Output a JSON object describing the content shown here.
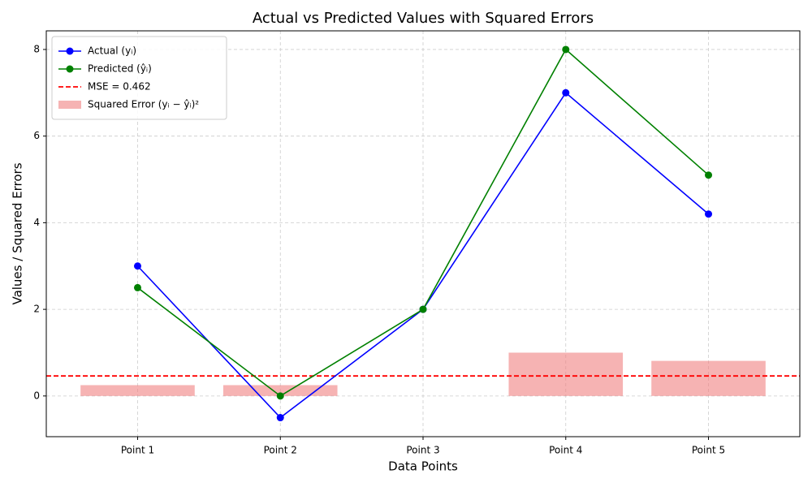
{
  "chart_data": {
    "type": "line",
    "title": "Actual vs Predicted Values with Squared Errors",
    "x_label": "Data Points",
    "y_label": "Values / Squared Errors",
    "categories": [
      "Point 1",
      "Point 2",
      "Point 3",
      "Point 4",
      "Point 5"
    ],
    "series": [
      {
        "name": "Actual (yᵢ)",
        "type": "line",
        "color": "#0000ff",
        "values": [
          3,
          -0.5,
          2,
          7,
          4.2
        ]
      },
      {
        "name": "Predicted (ŷᵢ)",
        "type": "line",
        "color": "#008000",
        "values": [
          2.5,
          0,
          2,
          8,
          5.1
        ]
      },
      {
        "name": "Squared Error (yᵢ − ŷᵢ)²",
        "type": "bar",
        "color": "#f08080",
        "values": [
          0.25,
          0.25,
          0,
          1,
          0.81
        ]
      }
    ],
    "reference_lines": [
      {
        "name": "MSE = 0.462",
        "value": 0.462,
        "color": "#ff0000"
      }
    ],
    "ylim": [
      -0.94,
      8.43
    ],
    "yticks": [
      0,
      2,
      4,
      6,
      8
    ],
    "grid": true,
    "legend": "upper left"
  }
}
